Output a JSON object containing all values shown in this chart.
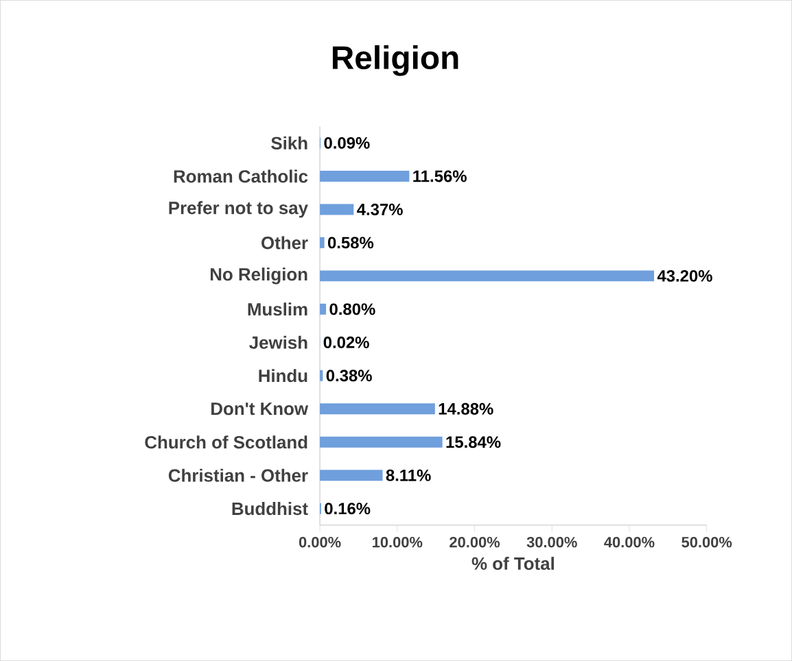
{
  "chart_data": {
    "type": "bar",
    "orientation": "horizontal",
    "title": "Religion",
    "xlabel": "% of Total",
    "categories": [
      "Sikh",
      "Roman Catholic",
      "Prefer not to say",
      "Other",
      "No Religion",
      "Muslim",
      "Jewish",
      "Hindu",
      "Don't Know",
      "Church of Scotland",
      "Christian - Other",
      "Buddhist"
    ],
    "values": [
      0.09,
      11.56,
      4.37,
      0.58,
      43.2,
      0.8,
      0.02,
      0.38,
      14.88,
      15.84,
      8.11,
      0.16
    ],
    "value_labels": [
      "0.09%",
      "11.56%",
      "4.37%",
      "0.58%",
      "43.20%",
      "0.80%",
      "0.02%",
      "0.38%",
      "14.88%",
      "15.84%",
      "8.11%",
      "0.16%"
    ],
    "color": "#6f9fdc",
    "xlim": [
      0,
      50
    ],
    "xticks": [
      {
        "value": 0,
        "label": "0.00%"
      },
      {
        "value": 10,
        "label": "10.00%"
      },
      {
        "value": 20,
        "label": "20.00%"
      },
      {
        "value": 30,
        "label": "30.00%"
      },
      {
        "value": 40,
        "label": "40.00%"
      },
      {
        "value": 50,
        "label": "50.00%"
      }
    ]
  }
}
